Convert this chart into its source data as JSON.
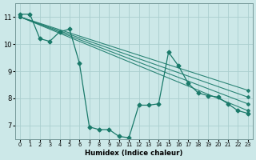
{
  "xlabel": "Humidex (Indice chaleur)",
  "xlim": [
    -0.5,
    23.5
  ],
  "ylim": [
    6.5,
    11.5
  ],
  "yticks": [
    7,
    8,
    9,
    10,
    11
  ],
  "xticks": [
    0,
    1,
    2,
    3,
    4,
    5,
    6,
    7,
    8,
    9,
    10,
    11,
    12,
    13,
    14,
    15,
    16,
    17,
    18,
    19,
    20,
    21,
    22,
    23
  ],
  "background_color": "#cce8e8",
  "grid_color": "#aacece",
  "line_color": "#1a7a6a",
  "wavy_x": [
    0,
    1,
    2,
    3,
    4,
    5,
    6,
    7,
    8,
    9,
    10,
    11,
    12,
    13,
    14,
    15,
    16,
    17,
    18,
    19,
    20,
    21,
    22,
    23
  ],
  "wavy_y": [
    11.1,
    11.1,
    10.2,
    10.1,
    10.45,
    10.55,
    9.3,
    6.95,
    6.85,
    6.85,
    6.6,
    6.55,
    7.75,
    7.75,
    7.8,
    9.7,
    9.2,
    8.55,
    8.2,
    8.1,
    8.05,
    7.8,
    7.55,
    7.45
  ],
  "smooth_lines": [
    {
      "x": [
        0,
        23
      ],
      "y": [
        11.0,
        8.3
      ]
    },
    {
      "x": [
        0,
        23
      ],
      "y": [
        11.0,
        8.05
      ]
    },
    {
      "x": [
        0,
        23
      ],
      "y": [
        11.0,
        7.8
      ]
    },
    {
      "x": [
        0,
        23
      ],
      "y": [
        11.0,
        7.55
      ]
    }
  ]
}
